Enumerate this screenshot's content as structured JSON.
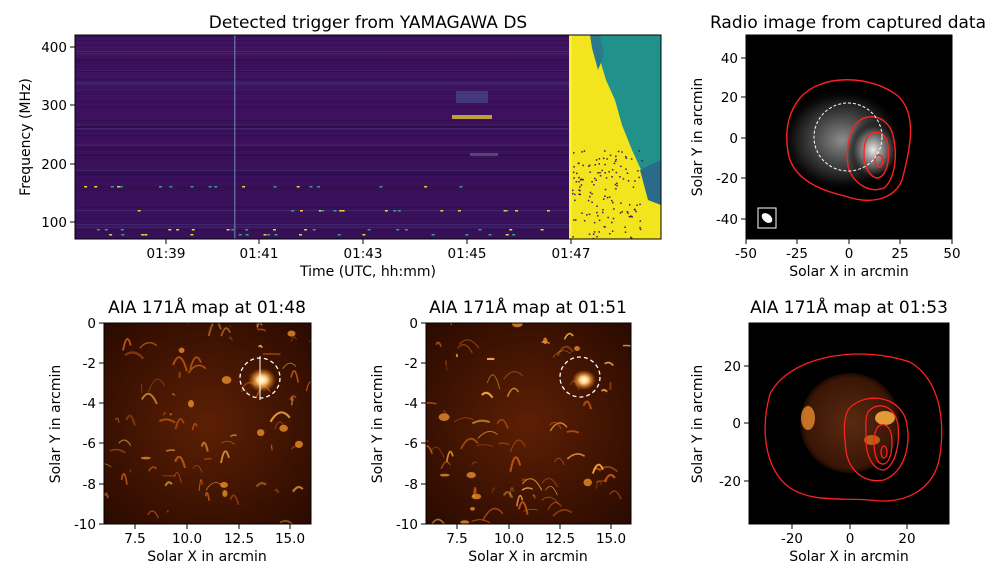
{
  "chart_data": [
    {
      "type": "heatmap",
      "panel": "spectrogram",
      "title": "Detected trigger from YAMAGAWA DS",
      "xlabel": "Time (UTC, hh:mm)",
      "ylabel": "Frequency (MHz)",
      "x_ticks": [
        "01:39",
        "01:41",
        "01:43",
        "01:45",
        "01:47"
      ],
      "y_ticks": [
        100,
        200,
        300,
        400
      ],
      "ylim": [
        70,
        420
      ],
      "colormap": "viridis",
      "colors": {
        "background": "#3a0f5c",
        "bright": "#f4e61e",
        "mid": "#21918c"
      },
      "features": [
        {
          "name": "burst onset",
          "time": "01:47",
          "freq_range_mhz": [
            70,
            420
          ]
        },
        {
          "name": "weak emission",
          "time": "01:45",
          "freq_range_mhz": [
            275,
            320
          ]
        }
      ]
    },
    {
      "type": "heatmap",
      "panel": "radio-image",
      "title": "Radio image from captured data",
      "xlabel": "Solar X in arcmin",
      "ylabel": "Solar Y in arcmin",
      "x_ticks": [
        -50,
        -25,
        0,
        25,
        50
      ],
      "y_ticks": [
        -40,
        -20,
        0,
        20,
        40
      ],
      "xlim": [
        -50,
        50
      ],
      "ylim": [
        -50,
        48
      ],
      "contour_color": "#ff2020",
      "peak": {
        "x": 15,
        "y": -12
      }
    },
    {
      "type": "heatmap",
      "panel": "aia-0148",
      "title": "AIA 171Å map at 01:48",
      "xlabel": "Solar X in arcmin",
      "ylabel": "Solar Y in arcmin",
      "x_ticks": [
        7.5,
        10.0,
        12.5,
        15.0
      ],
      "y_ticks": [
        0,
        -2,
        -4,
        -6,
        -8,
        -10
      ],
      "xlim": [
        6,
        16
      ],
      "ylim": [
        -10,
        0
      ],
      "marked_region": {
        "x": 13.4,
        "y": -2.8
      }
    },
    {
      "type": "heatmap",
      "panel": "aia-0151",
      "title": "AIA 171Å map at 01:51",
      "xlabel": "Solar X in arcmin",
      "ylabel": "Solar Y in arcmin",
      "x_ticks": [
        7.5,
        10.0,
        12.5,
        15.0
      ],
      "y_ticks": [
        0,
        -2,
        -4,
        -6,
        -8,
        -10
      ],
      "xlim": [
        6,
        16
      ],
      "ylim": [
        -10,
        0
      ],
      "marked_region": {
        "x": 13.4,
        "y": -2.8
      }
    },
    {
      "type": "heatmap",
      "panel": "aia-0153",
      "title": "AIA 171Å map at 01:53",
      "xlabel": "Solar X in arcmin",
      "ylabel": "Solar Y in arcmin",
      "x_ticks": [
        -20,
        0,
        20
      ],
      "y_ticks": [
        20,
        0,
        -20
      ],
      "xlim": [
        -35,
        35
      ],
      "ylim": [
        -34,
        34
      ],
      "contour_color": "#ff2020"
    }
  ]
}
